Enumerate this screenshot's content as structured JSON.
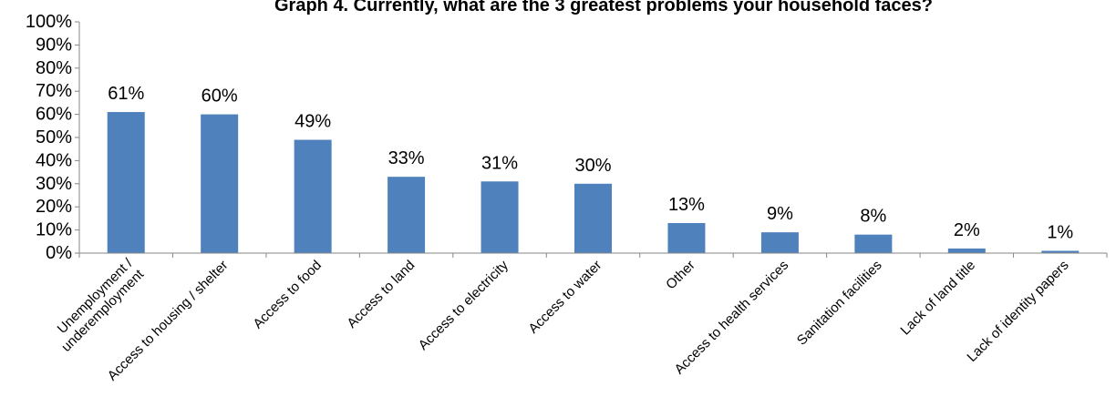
{
  "chart_data": {
    "type": "bar",
    "title": "Graph 4. Currently, what are the 3 greatest problems your household faces?",
    "xlabel": "",
    "ylabel": "",
    "categories": [
      "Unemployment / underemployment",
      "Access to housing / shelter",
      "Access to food",
      "Access to land",
      "Access to electricity",
      "Access to water",
      "Other",
      "Access to health services",
      "Sanitation facilities",
      "Lack of land title",
      "Lack of identity papers"
    ],
    "values": [
      61,
      60,
      49,
      33,
      31,
      30,
      13,
      9,
      8,
      2,
      1
    ],
    "data_labels": [
      "61%",
      "60%",
      "49%",
      "33%",
      "31%",
      "30%",
      "13%",
      "9%",
      "8%",
      "2%",
      "1%"
    ],
    "ylim": [
      0,
      100
    ],
    "y_ticks": [
      0,
      10,
      20,
      30,
      40,
      50,
      60,
      70,
      80,
      90,
      100
    ],
    "y_tick_labels": [
      "0%",
      "10%",
      "20%",
      "30%",
      "40%",
      "50%",
      "60%",
      "70%",
      "80%",
      "90%",
      "100%"
    ],
    "grid": false,
    "legend": "none",
    "bar_color": "#4F81BD"
  }
}
